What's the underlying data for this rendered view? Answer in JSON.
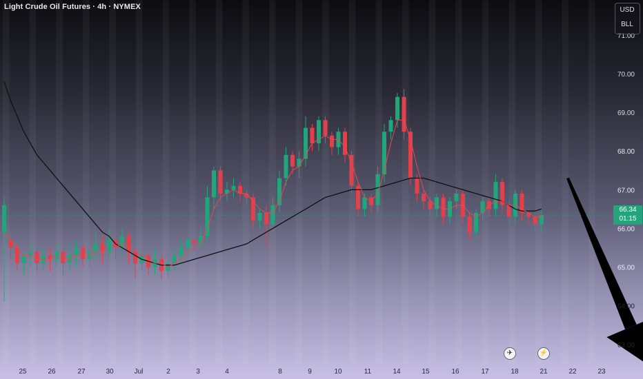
{
  "header": {
    "title": "Light Crude Oil Futures · 4h · NYMEX"
  },
  "scale": {
    "currency": "USD",
    "unit": "BLL"
  },
  "price_tag": {
    "price": "66.34",
    "countdown": "01:15"
  },
  "events": [
    {
      "icon": "airplane-icon",
      "symbol": "✈"
    },
    {
      "icon": "lightning-icon",
      "symbol": "⚡"
    }
  ],
  "colors": {
    "up": "#22a57a",
    "down": "#e0414b",
    "ma_fast": "#e8484f",
    "ma_slow": "#101010",
    "arrow": "#000000"
  },
  "chart_data": {
    "type": "candlestick",
    "title": "Light Crude Oil Futures · 4h · NYMEX",
    "y_ticks": [
      71,
      70,
      69,
      68,
      67,
      66,
      65,
      64,
      63
    ],
    "y_tick_labels": [
      "71.00",
      "70.00",
      "69.00",
      "68.00",
      "67.00",
      "66.00",
      "65.00",
      "64.00",
      "63.00"
    ],
    "ylim": [
      62.55,
      71.55
    ],
    "x_labels": [
      "25",
      "26",
      "27",
      "30",
      "Jul",
      "2",
      "3",
      "4",
      "8",
      "9",
      "10",
      "11",
      "14",
      "15",
      "16",
      "17",
      "18",
      "21",
      "22",
      "23"
    ],
    "candles": [
      [
        65.9,
        66.6,
        65.7,
        66.8,
        64.1
      ],
      [
        65.7,
        65.5,
        65.3,
        65.9,
        65.2
      ],
      [
        65.5,
        65.1,
        65.0,
        65.6,
        64.9
      ],
      [
        65.1,
        65.3,
        65.0,
        65.4,
        64.8
      ],
      [
        65.3,
        65.4,
        65.1,
        65.6,
        65.0
      ],
      [
        65.4,
        65.1,
        65.0,
        65.5,
        64.9
      ],
      [
        65.1,
        65.3,
        65.0,
        65.5,
        64.9
      ],
      [
        65.3,
        65.2,
        65.1,
        65.5,
        64.9
      ],
      [
        65.2,
        65.4,
        65.1,
        65.6,
        65.0
      ],
      [
        65.4,
        65.1,
        65.0,
        65.5,
        64.8
      ],
      [
        65.1,
        65.3,
        65.0,
        65.6,
        64.9
      ],
      [
        65.3,
        65.5,
        65.2,
        65.7,
        65.0
      ],
      [
        65.5,
        65.2,
        65.1,
        65.6,
        65.0
      ],
      [
        65.2,
        65.4,
        65.1,
        65.7,
        65.0
      ],
      [
        65.4,
        65.6,
        65.3,
        65.9,
        65.2
      ],
      [
        65.6,
        65.4,
        65.3,
        65.8,
        65.1
      ],
      [
        65.4,
        65.7,
        65.3,
        66.0,
        65.2
      ],
      [
        65.7,
        65.5,
        65.4,
        65.8,
        65.2
      ],
      [
        65.5,
        65.8,
        65.4,
        66.0,
        65.3
      ],
      [
        65.8,
        65.4,
        65.3,
        65.9,
        65.1
      ],
      [
        65.4,
        65.1,
        65.0,
        65.5,
        64.7
      ],
      [
        65.1,
        65.3,
        65.0,
        65.6,
        64.9
      ],
      [
        65.3,
        65.0,
        64.9,
        65.4,
        64.8
      ],
      [
        65.0,
        65.2,
        64.9,
        65.5,
        64.8
      ],
      [
        65.2,
        64.9,
        64.8,
        65.3,
        64.7
      ],
      [
        64.9,
        65.1,
        64.8,
        65.4,
        64.7
      ],
      [
        65.1,
        65.3,
        65.0,
        65.5,
        64.9
      ],
      [
        65.3,
        65.5,
        65.2,
        65.7,
        65.1
      ],
      [
        65.5,
        65.7,
        65.4,
        65.8,
        65.3
      ],
      [
        65.7,
        65.6,
        65.5,
        65.9,
        65.4
      ],
      [
        65.6,
        65.8,
        65.5,
        66.0,
        65.5
      ],
      [
        65.8,
        66.8,
        65.7,
        67.1,
        65.7
      ],
      [
        66.8,
        67.5,
        66.6,
        67.6,
        66.5
      ],
      [
        67.5,
        66.9,
        66.8,
        67.6,
        66.7
      ],
      [
        66.9,
        67.0,
        66.8,
        67.2,
        66.7
      ],
      [
        67.0,
        67.1,
        66.9,
        67.3,
        66.8
      ],
      [
        67.1,
        66.9,
        66.8,
        67.2,
        66.7
      ],
      [
        66.9,
        66.8,
        66.7,
        67.0,
        66.6
      ],
      [
        66.8,
        66.2,
        66.1,
        66.9,
        66.0
      ],
      [
        66.2,
        66.4,
        66.1,
        66.5,
        66.0
      ],
      [
        66.4,
        66.1,
        65.7,
        66.6,
        65.5
      ],
      [
        66.1,
        66.6,
        66.0,
        66.8,
        65.9
      ],
      [
        66.6,
        67.3,
        66.5,
        67.5,
        66.4
      ],
      [
        67.3,
        67.9,
        67.2,
        68.1,
        67.1
      ],
      [
        67.9,
        67.6,
        67.5,
        68.0,
        67.4
      ],
      [
        67.6,
        67.8,
        67.5,
        68.0,
        67.3
      ],
      [
        67.8,
        68.6,
        67.7,
        68.9,
        67.6
      ],
      [
        68.6,
        68.2,
        68.0,
        68.7,
        68.0
      ],
      [
        68.2,
        68.8,
        68.1,
        68.9,
        68.0
      ],
      [
        68.8,
        68.4,
        68.3,
        68.9,
        68.2
      ],
      [
        68.4,
        68.1,
        68.0,
        68.5,
        67.9
      ],
      [
        68.1,
        68.5,
        68.0,
        68.6,
        67.9
      ],
      [
        68.5,
        67.9,
        67.8,
        68.6,
        67.7
      ],
      [
        67.9,
        67.1,
        67.0,
        68.0,
        66.9
      ],
      [
        67.1,
        66.5,
        66.4,
        67.2,
        66.3
      ],
      [
        66.5,
        66.8,
        66.4,
        66.9,
        66.3
      ],
      [
        66.8,
        66.6,
        66.5,
        66.9,
        66.4
      ],
      [
        66.6,
        67.4,
        66.5,
        67.6,
        66.4
      ],
      [
        67.4,
        68.5,
        67.3,
        68.7,
        67.2
      ],
      [
        68.5,
        68.8,
        68.4,
        68.9,
        68.3
      ],
      [
        68.8,
        69.4,
        68.7,
        69.5,
        68.6
      ],
      [
        69.4,
        68.5,
        68.4,
        69.6,
        68.3
      ],
      [
        68.5,
        67.3,
        67.2,
        68.6,
        67.1
      ],
      [
        67.3,
        66.9,
        66.8,
        67.4,
        66.7
      ],
      [
        66.9,
        66.7,
        66.6,
        67.0,
        66.5
      ],
      [
        66.7,
        66.5,
        66.4,
        66.8,
        66.3
      ],
      [
        66.5,
        66.8,
        66.4,
        66.9,
        66.3
      ],
      [
        66.8,
        66.3,
        66.2,
        66.9,
        66.1
      ],
      [
        66.3,
        66.7,
        66.2,
        66.8,
        66.1
      ],
      [
        66.7,
        66.9,
        66.6,
        67.0,
        66.5
      ],
      [
        66.9,
        66.3,
        66.2,
        67.0,
        66.1
      ],
      [
        66.3,
        65.9,
        65.8,
        66.4,
        65.7
      ],
      [
        65.9,
        66.4,
        65.8,
        66.5,
        65.7
      ],
      [
        66.4,
        66.7,
        66.3,
        66.8,
        66.2
      ],
      [
        66.7,
        66.5,
        66.4,
        66.8,
        66.3
      ],
      [
        66.5,
        67.2,
        66.4,
        67.4,
        66.3
      ],
      [
        67.2,
        66.6,
        66.5,
        67.3,
        66.4
      ],
      [
        66.6,
        66.3,
        66.2,
        66.7,
        66.1
      ],
      [
        66.3,
        66.9,
        66.2,
        67.0,
        66.1
      ],
      [
        66.9,
        66.4,
        66.3,
        67.0,
        66.2
      ],
      [
        66.4,
        66.3,
        66.2,
        66.5,
        66.1
      ],
      [
        66.3,
        66.1,
        66.0,
        66.4,
        65.9
      ],
      [
        66.1,
        66.34,
        66.0,
        66.5,
        65.9
      ]
    ],
    "ma_fast": [
      65.9,
      65.7,
      65.5,
      65.3,
      65.3,
      65.2,
      65.2,
      65.2,
      65.3,
      65.2,
      65.2,
      65.3,
      65.3,
      65.3,
      65.4,
      65.4,
      65.5,
      65.5,
      65.6,
      65.5,
      65.4,
      65.3,
      65.2,
      65.1,
      65.1,
      65.0,
      65.1,
      65.2,
      65.4,
      65.5,
      65.6,
      66.0,
      66.5,
      66.8,
      66.9,
      67.0,
      66.9,
      66.9,
      66.7,
      66.5,
      66.4,
      66.4,
      66.7,
      67.2,
      67.5,
      67.6,
      67.9,
      68.2,
      68.3,
      68.4,
      68.3,
      68.3,
      68.1,
      67.7,
      67.2,
      66.8,
      66.7,
      66.9,
      67.5,
      68.2,
      68.8,
      68.8,
      68.3,
      67.6,
      67.0,
      66.7,
      66.6,
      66.5,
      66.5,
      66.6,
      66.6,
      66.4,
      66.3,
      66.4,
      66.6,
      66.7,
      66.7,
      66.6,
      66.6,
      66.5,
      66.4,
      66.3,
      66.3
    ],
    "ma_slow": [
      69.8,
      69.3,
      68.9,
      68.5,
      68.2,
      67.9,
      67.7,
      67.5,
      67.3,
      67.1,
      66.9,
      66.7,
      66.5,
      66.3,
      66.1,
      65.9,
      65.8,
      65.6,
      65.5,
      65.4,
      65.3,
      65.2,
      65.15,
      65.1,
      65.05,
      65.05,
      65.05,
      65.1,
      65.15,
      65.2,
      65.25,
      65.3,
      65.35,
      65.4,
      65.45,
      65.5,
      65.55,
      65.6,
      65.7,
      65.8,
      65.9,
      66.0,
      66.1,
      66.2,
      66.3,
      66.4,
      66.5,
      66.6,
      66.7,
      66.8,
      66.85,
      66.9,
      66.95,
      67.0,
      67.0,
      67.0,
      67.0,
      67.05,
      67.1,
      67.15,
      67.2,
      67.25,
      67.3,
      67.3,
      67.3,
      67.25,
      67.2,
      67.15,
      67.1,
      67.05,
      67.0,
      66.95,
      66.9,
      66.85,
      66.8,
      66.75,
      66.7,
      66.6,
      66.5,
      66.45,
      66.45,
      66.45,
      66.5
    ],
    "forecast_arrow": {
      "from": {
        "bar": 86,
        "price": 67.3
      },
      "to": {
        "bar": 98,
        "price": 62.5
      }
    }
  }
}
